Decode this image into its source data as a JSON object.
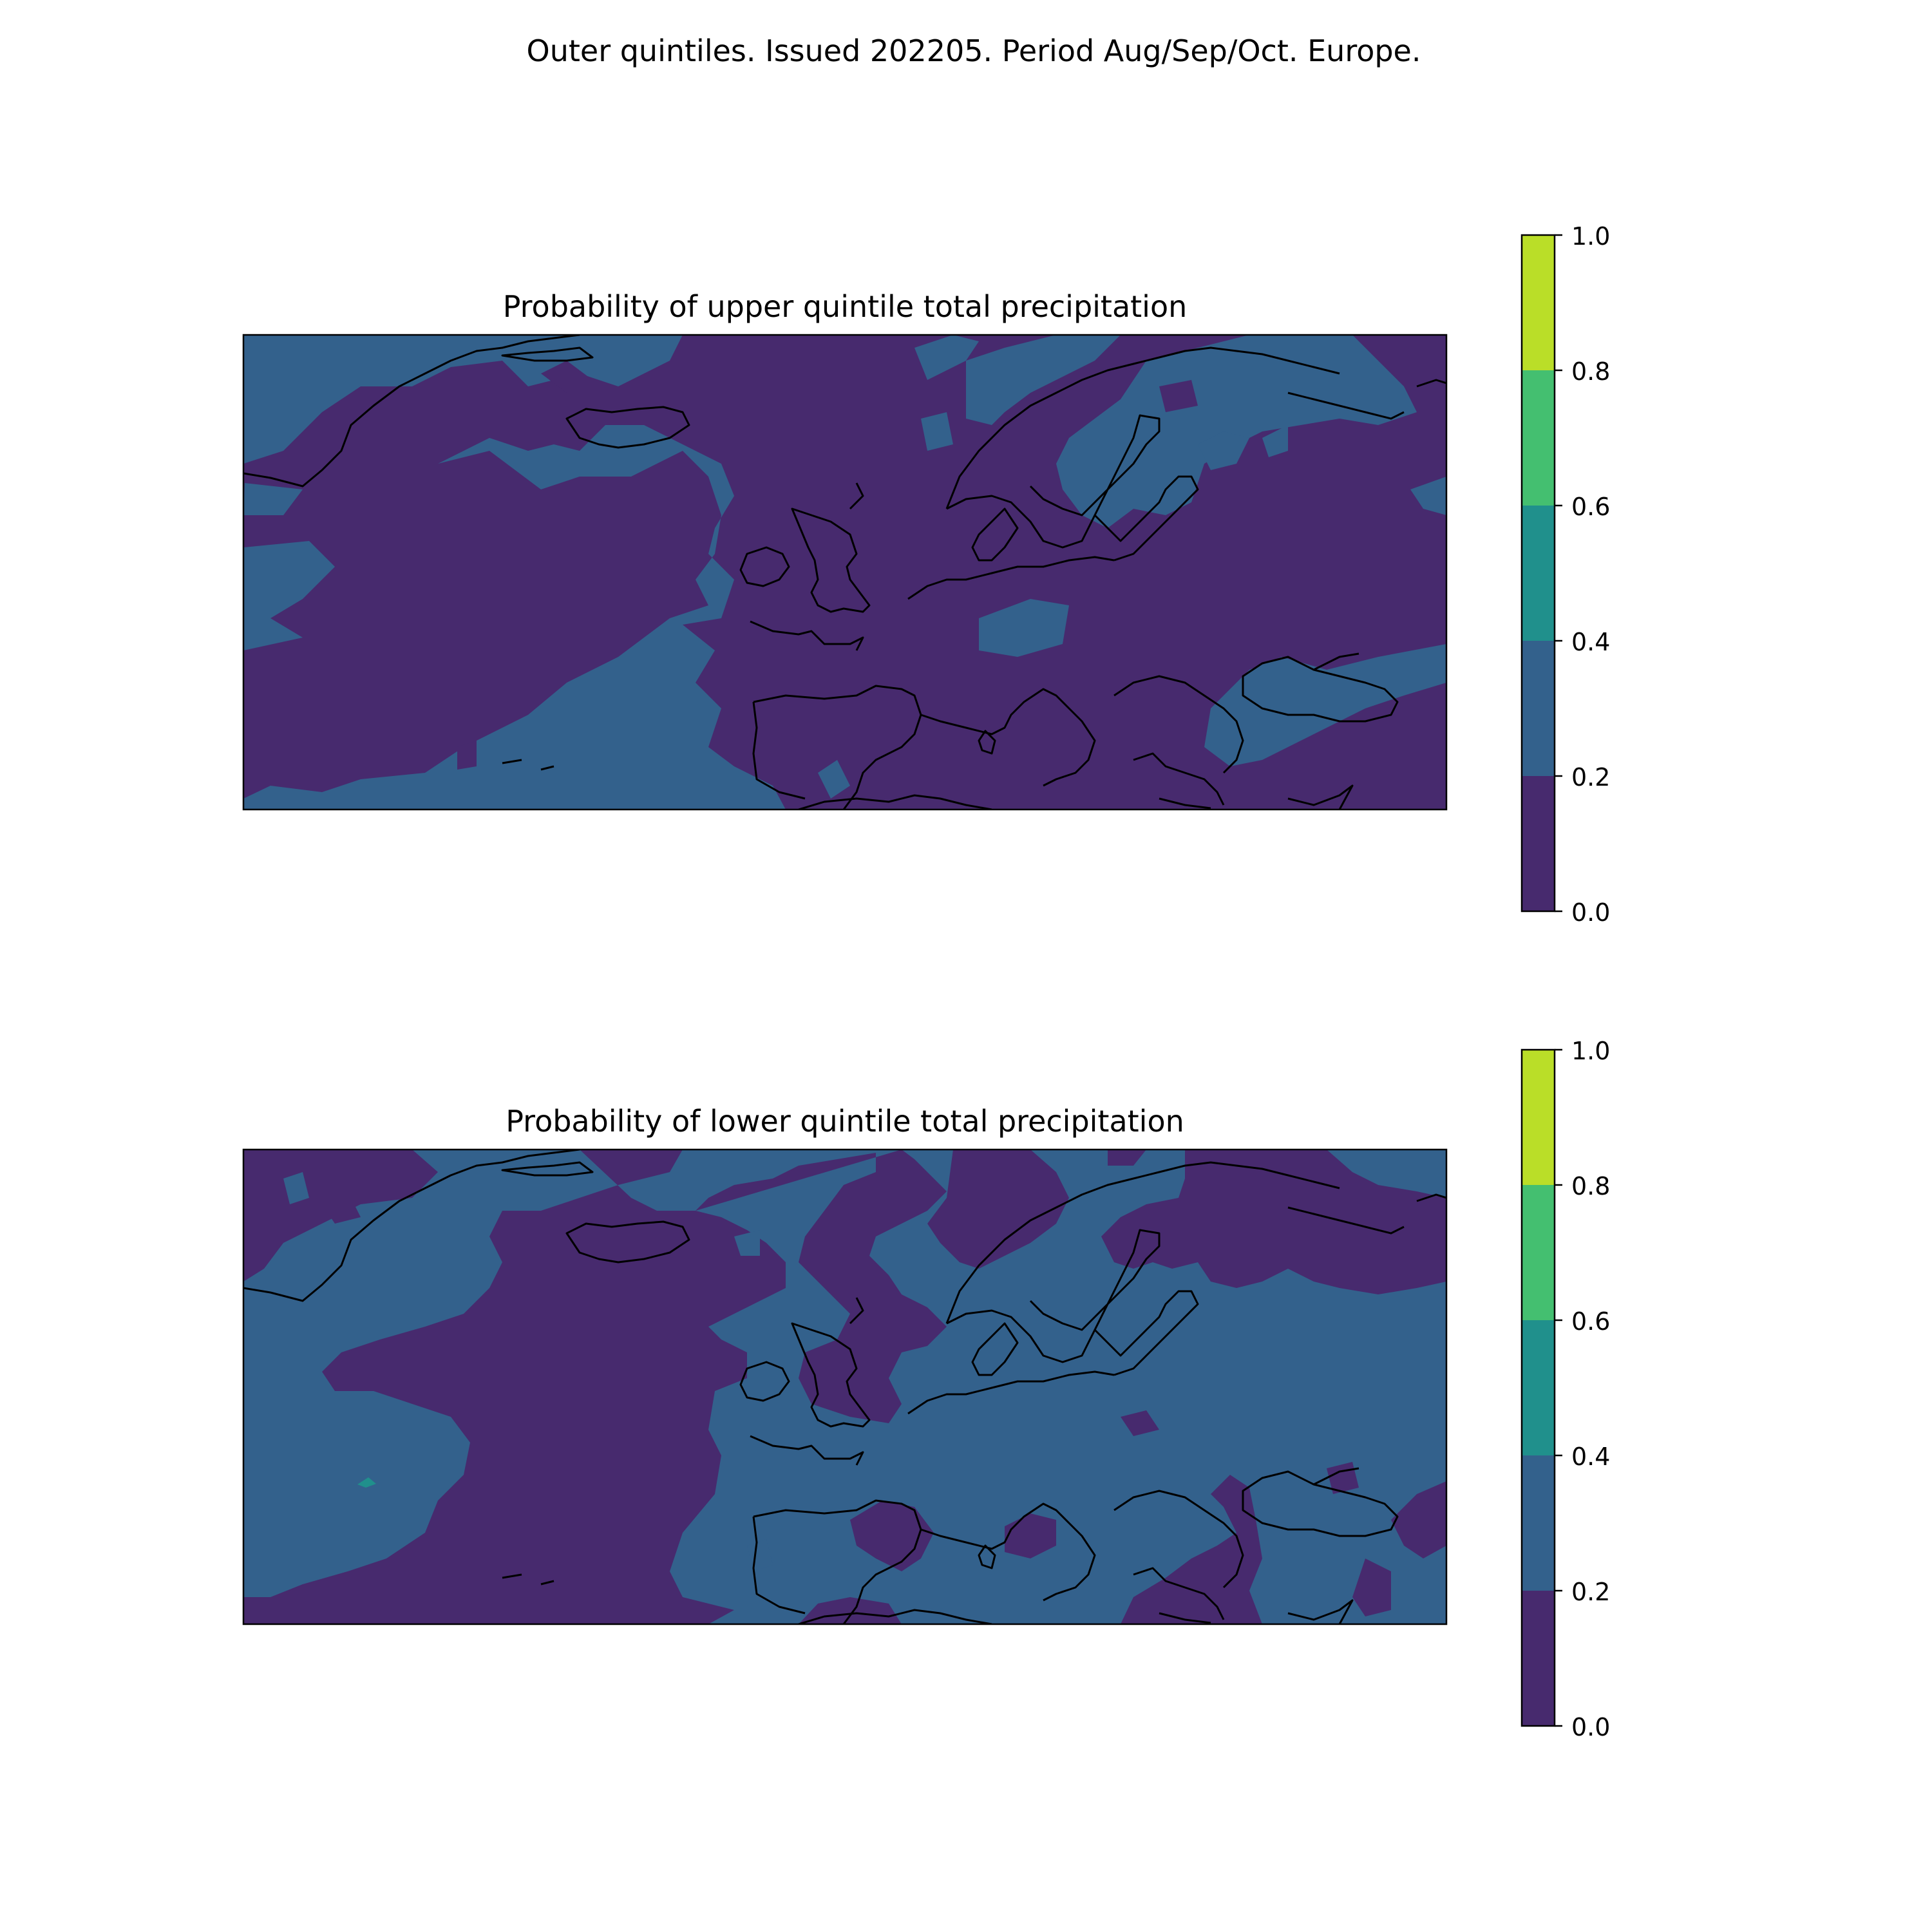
{
  "figure": {
    "suptitle": "Outer quintiles. Issued 202205. Period Aug/Sep/Oct. Europe."
  },
  "colorbar": {
    "ticks": [
      "0.0",
      "0.2",
      "0.4",
      "0.6",
      "0.8",
      "1.0"
    ],
    "levels": [
      {
        "range": [
          0.0,
          0.2
        ],
        "color": "#472a6e"
      },
      {
        "range": [
          0.2,
          0.4
        ],
        "color": "#33618c"
      },
      {
        "range": [
          0.4,
          0.6
        ],
        "color": "#20908c"
      },
      {
        "range": [
          0.6,
          0.8
        ],
        "color": "#44bf70"
      },
      {
        "range": [
          0.8,
          1.0
        ],
        "color": "#bade28"
      }
    ]
  },
  "panels": [
    {
      "title": "Probability of upper quintile total precipitation",
      "dominant_class": "0.0-0.2",
      "secondary_class": "0.2-0.4"
    },
    {
      "title": "Probability of lower quintile total precipitation",
      "dominant_class": "0.2-0.4",
      "secondary_class": "0.0-0.2"
    }
  ]
}
